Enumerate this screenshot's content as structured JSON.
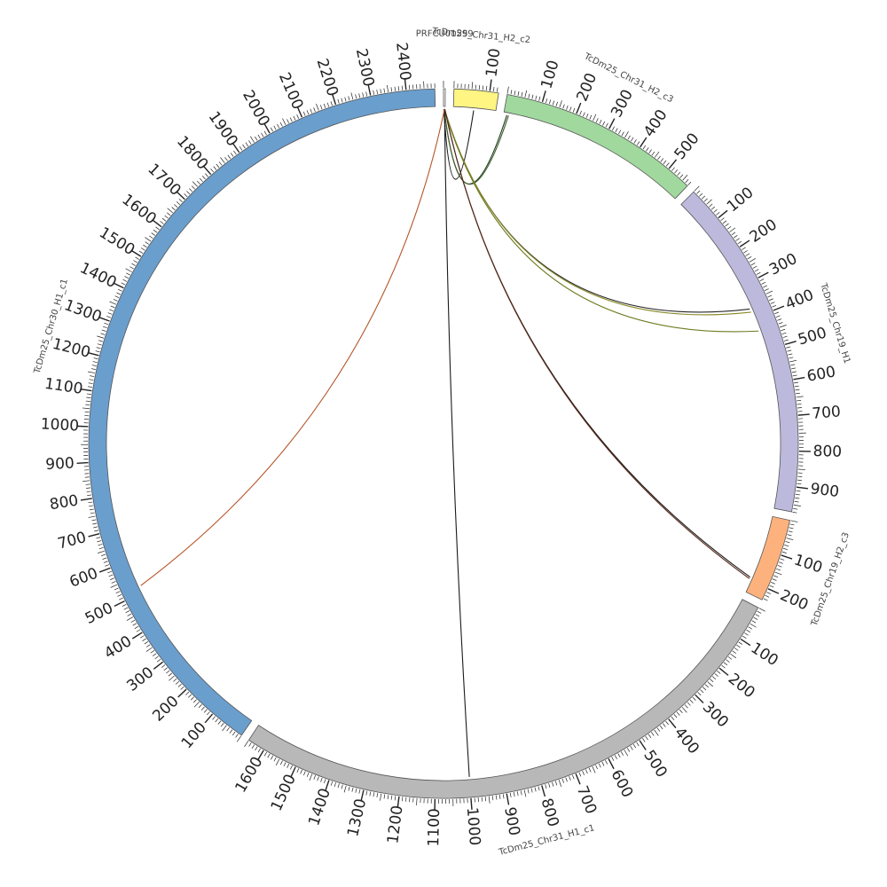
{
  "diagram": {
    "type": "circos",
    "segments": [
      {
        "id": "PRFCU01599",
        "label": "PRFCU01599",
        "length": 5,
        "color": "#ffffff",
        "major_tick_labels": []
      },
      {
        "id": "chr31_h2_c2",
        "label": "TcDm25_Chr31_H2_c2",
        "length": 125,
        "color": "#fff582",
        "major_tick_labels": [
          100
        ]
      },
      {
        "id": "chr31_h2_c3",
        "label": "TcDm25_Chr31_H2_c3",
        "length": 570,
        "color": "#a1d89e",
        "major_tick_labels": [
          100,
          200,
          300,
          400,
          500
        ]
      },
      {
        "id": "chr19_h1",
        "label": "TcDm25_Chr19_H1",
        "length": 970,
        "color": "#bcb9dc",
        "major_tick_labels": [
          100,
          200,
          300,
          400,
          500,
          600,
          700,
          800,
          900
        ]
      },
      {
        "id": "chr19_h2_c3",
        "label": "TcDm25_Chr19_H2_c3",
        "length": 235,
        "color": "#fdb27e",
        "major_tick_labels": [
          100,
          200
        ]
      },
      {
        "id": "chr31_h1_c1",
        "label": "TcDm25_Chr31_H1_c1",
        "length": 1650,
        "color": "#b8b8b8",
        "major_tick_labels": [
          100,
          200,
          300,
          400,
          500,
          600,
          700,
          800,
          900,
          1000,
          1100,
          1200,
          1300,
          1400,
          1500,
          1600
        ]
      },
      {
        "id": "chr30_h1_c1",
        "label": "TcDm25_Chr30_H1_c1",
        "length": 2480,
        "color": "#6a9ecd",
        "major_tick_labels": [
          100,
          200,
          300,
          400,
          500,
          600,
          700,
          800,
          900,
          1000,
          1100,
          1200,
          1300,
          1400,
          1500,
          1600,
          1700,
          1800,
          1900,
          2000,
          2100,
          2200,
          2300,
          2400
        ]
      }
    ],
    "links": [
      {
        "from": "PRFCU01599",
        "from_pos": 1,
        "to": "chr31_h2_c2",
        "to_pos": 60,
        "color": "#1a1a1a"
      },
      {
        "from": "PRFCU01599",
        "from_pos": 2,
        "to": "chr31_h2_c3",
        "to_pos": 10,
        "color": "#1f3b1f"
      },
      {
        "from": "PRFCU01599",
        "from_pos": 2,
        "to": "chr31_h2_c3",
        "to_pos": 15,
        "color": "#3b5d2a"
      },
      {
        "from": "PRFCU01599",
        "from_pos": 3,
        "to": "chr19_h1",
        "to_pos": 370,
        "color": "#262626"
      },
      {
        "from": "PRFCU01599",
        "from_pos": 3,
        "to": "chr19_h1",
        "to_pos": 380,
        "color": "#8a8a2a"
      },
      {
        "from": "PRFCU01599",
        "from_pos": 2,
        "to": "chr19_h1",
        "to_pos": 440,
        "color": "#6d7a1e"
      },
      {
        "from": "PRFCU01599",
        "from_pos": 4,
        "to": "chr19_h2_c3",
        "to_pos": 190,
        "color": "#1a1a1a"
      },
      {
        "from": "PRFCU01599",
        "from_pos": 4,
        "to": "chr19_h2_c3",
        "to_pos": 195,
        "color": "#5a2a1a"
      },
      {
        "from": "PRFCU01599",
        "from_pos": 3,
        "to": "chr31_h1_c1",
        "to_pos": 1000,
        "color": "#1a1a1a"
      },
      {
        "from": "PRFCU01599",
        "from_pos": 3,
        "to": "chr30_h1_c1",
        "to_pos": 520,
        "color": "#b5562a"
      }
    ]
  }
}
